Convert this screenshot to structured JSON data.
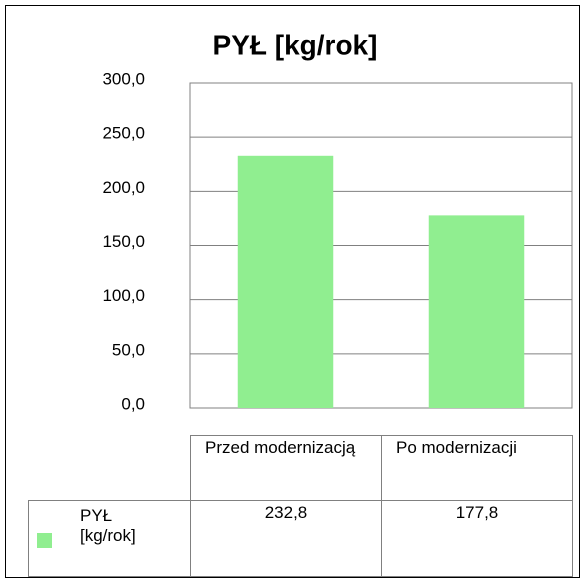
{
  "chart_data": {
    "type": "bar",
    "title": "PYŁ [kg/rok]",
    "categories": [
      "Przed modernizacją",
      "Po modernizacji"
    ],
    "series": [
      {
        "name": "PYŁ [kg/rok]",
        "color": "#90ee90",
        "values": [
          232.8,
          177.8
        ],
        "value_labels": [
          "232,8",
          "177,8"
        ]
      }
    ],
    "ylim": [
      0,
      300
    ],
    "yticks": [
      {
        "value": 0,
        "label": "0,0"
      },
      {
        "value": 50,
        "label": "50,0"
      },
      {
        "value": 100,
        "label": "100,0"
      },
      {
        "value": 150,
        "label": "150,0"
      },
      {
        "value": 200,
        "label": "200,0"
      },
      {
        "value": 250,
        "label": "250,0"
      },
      {
        "value": 300,
        "label": "300,0"
      }
    ],
    "grid": true
  }
}
